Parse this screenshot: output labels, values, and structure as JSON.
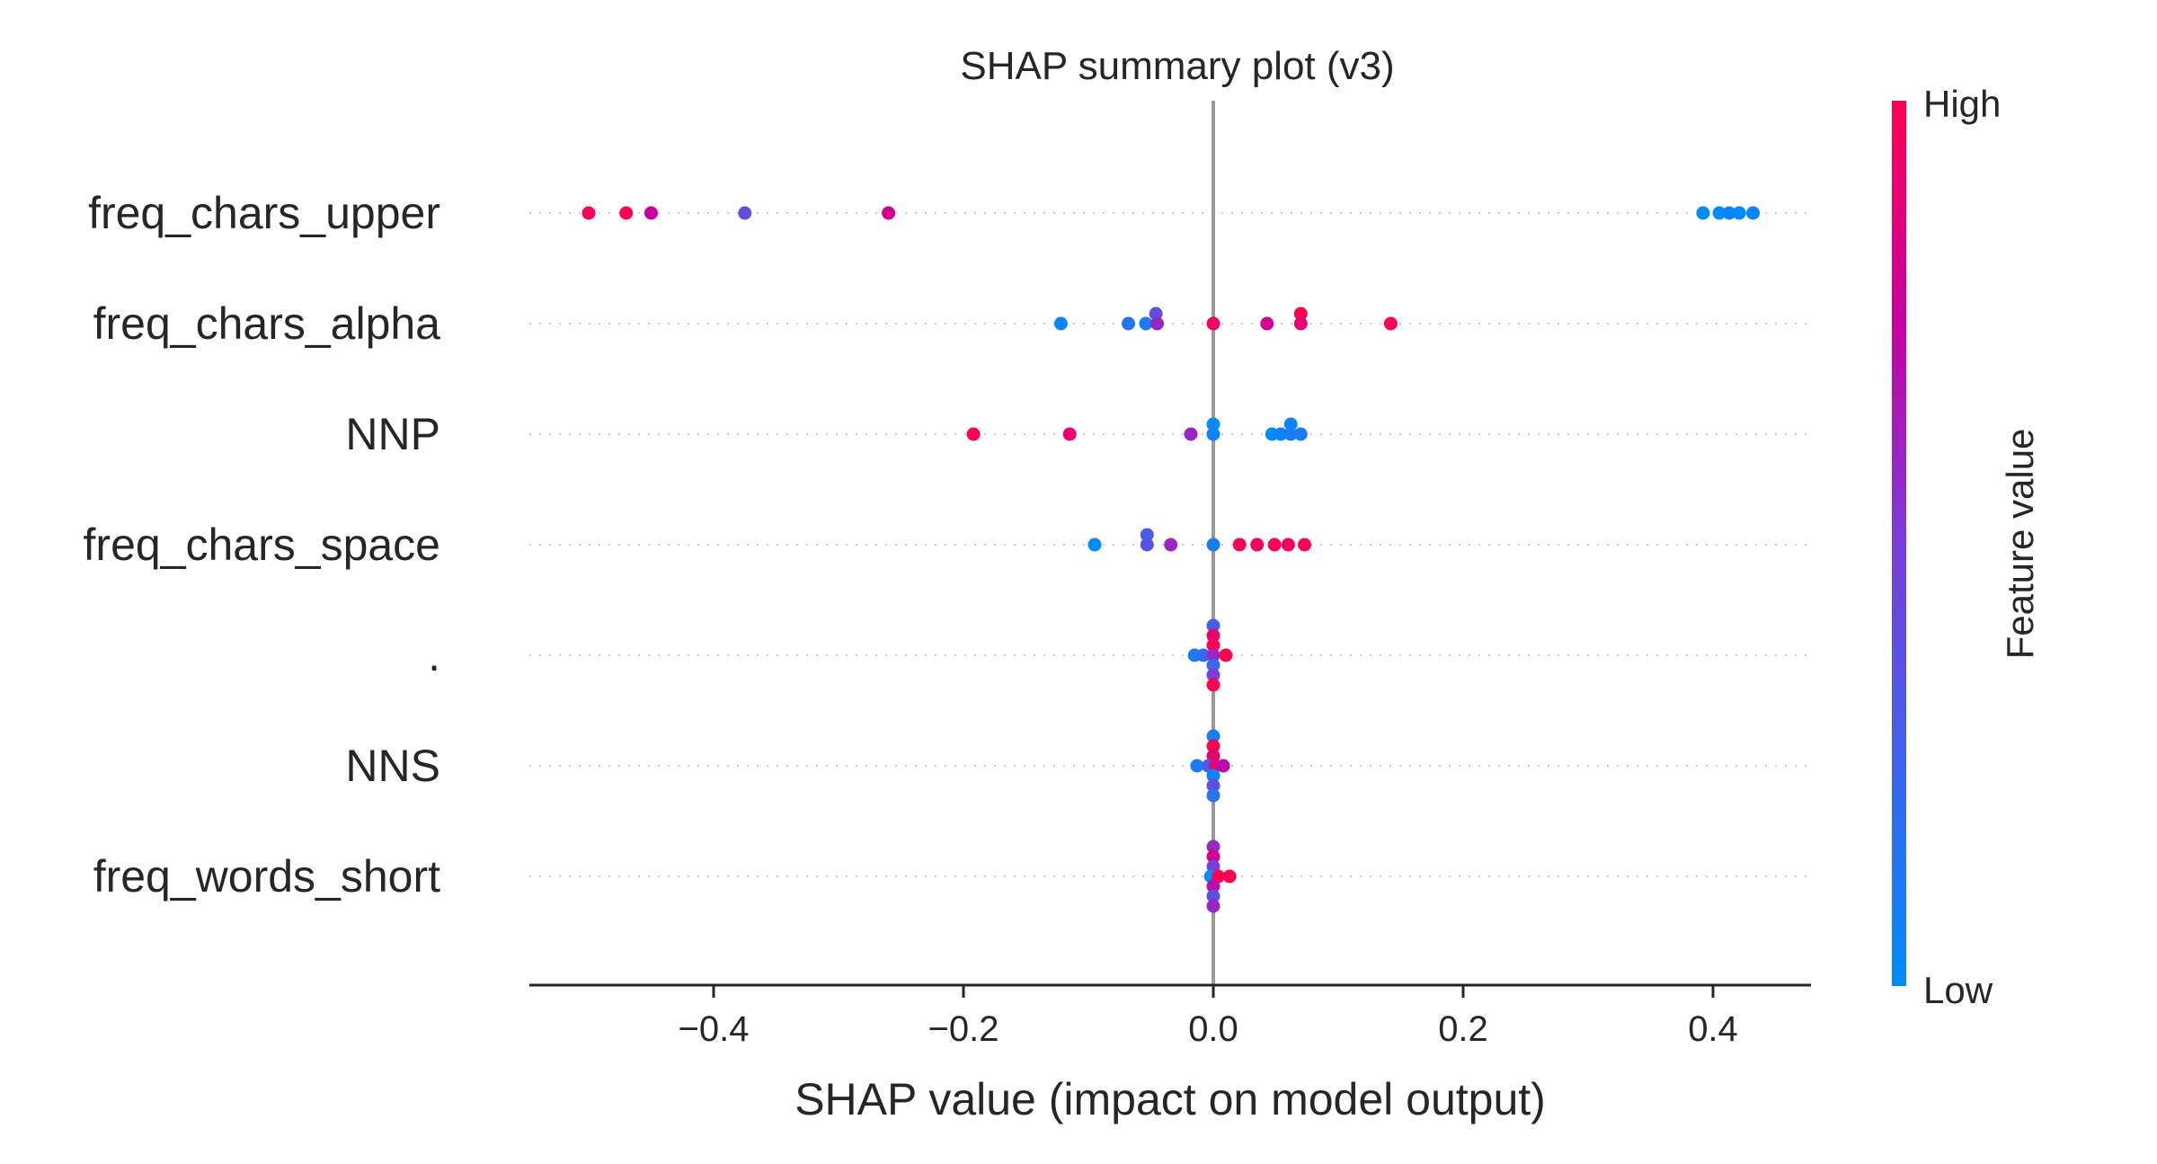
{
  "chart_data": {
    "type": "scatter",
    "title": "SHAP summary plot (v3)",
    "xlabel": "SHAP value (impact on model output)",
    "xlim": [
      -0.55,
      0.48
    ],
    "xticks": [
      -0.4,
      -0.2,
      0.0,
      0.2,
      0.4
    ],
    "xtick_labels": [
      "−0.4",
      "−0.2",
      "0.0",
      "0.2",
      "0.4"
    ],
    "colorbar": {
      "title": "Feature value",
      "high_label": "High",
      "low_label": "Low",
      "low_color": "#008bfb",
      "high_color": "#ff0052"
    },
    "features": [
      {
        "name": "freq_chars_upper",
        "points": [
          {
            "x": -0.5,
            "v": 1.0,
            "j": 0
          },
          {
            "x": -0.47,
            "v": 1.0,
            "j": 0
          },
          {
            "x": -0.45,
            "v": 0.75,
            "j": 0
          },
          {
            "x": -0.375,
            "v": 0.4,
            "j": 0
          },
          {
            "x": -0.26,
            "v": 0.8,
            "j": 0
          },
          {
            "x": 0.392,
            "v": 0.0,
            "j": 0
          },
          {
            "x": 0.405,
            "v": 0.0,
            "j": 0
          },
          {
            "x": 0.413,
            "v": 0.05,
            "j": 0
          },
          {
            "x": 0.421,
            "v": 0.0,
            "j": 0
          },
          {
            "x": 0.432,
            "v": 0.05,
            "j": 0
          }
        ]
      },
      {
        "name": "freq_chars_alpha",
        "points": [
          {
            "x": -0.122,
            "v": 0.05,
            "j": 0
          },
          {
            "x": -0.068,
            "v": 0.15,
            "j": 0
          },
          {
            "x": -0.054,
            "v": 0.1,
            "j": 0
          },
          {
            "x": -0.046,
            "v": 0.4,
            "j": -1
          },
          {
            "x": -0.045,
            "v": 0.6,
            "j": 0
          },
          {
            "x": 0.0,
            "v": 0.95,
            "j": 0
          },
          {
            "x": 0.043,
            "v": 0.8,
            "j": 0
          },
          {
            "x": 0.07,
            "v": 1.0,
            "j": -1
          },
          {
            "x": 0.07,
            "v": 0.9,
            "j": 0
          },
          {
            "x": 0.142,
            "v": 1.0,
            "j": 0
          }
        ]
      },
      {
        "name": "NNP",
        "points": [
          {
            "x": -0.192,
            "v": 1.0,
            "j": 0
          },
          {
            "x": -0.115,
            "v": 0.9,
            "j": 0
          },
          {
            "x": -0.018,
            "v": 0.6,
            "j": 0
          },
          {
            "x": 0.0,
            "v": 0.0,
            "j": -1
          },
          {
            "x": 0.0,
            "v": 0.05,
            "j": 0
          },
          {
            "x": 0.047,
            "v": 0.0,
            "j": 0
          },
          {
            "x": 0.054,
            "v": 0.05,
            "j": 0
          },
          {
            "x": 0.062,
            "v": 0.1,
            "j": 0
          },
          {
            "x": 0.062,
            "v": 0.05,
            "j": -1
          },
          {
            "x": 0.07,
            "v": 0.1,
            "j": 0
          }
        ]
      },
      {
        "name": "freq_chars_space",
        "points": [
          {
            "x": -0.095,
            "v": 0.0,
            "j": 0
          },
          {
            "x": -0.053,
            "v": 0.3,
            "j": -1
          },
          {
            "x": -0.053,
            "v": 0.35,
            "j": 0
          },
          {
            "x": -0.034,
            "v": 0.6,
            "j": 0
          },
          {
            "x": 0.0,
            "v": 0.1,
            "j": 0
          },
          {
            "x": 0.021,
            "v": 1.0,
            "j": 0
          },
          {
            "x": 0.035,
            "v": 0.95,
            "j": 0
          },
          {
            "x": 0.049,
            "v": 1.0,
            "j": 0
          },
          {
            "x": 0.06,
            "v": 0.95,
            "j": 0
          },
          {
            "x": 0.073,
            "v": 1.0,
            "j": 0
          }
        ]
      },
      {
        "name": ".",
        "points": [
          {
            "x": 0.0,
            "v": 0.3,
            "j": -3
          },
          {
            "x": 0.0,
            "v": 0.9,
            "j": -2
          },
          {
            "x": 0.0,
            "v": 1.0,
            "j": -1
          },
          {
            "x": -0.015,
            "v": 0.1,
            "j": 0
          },
          {
            "x": -0.008,
            "v": 0.2,
            "j": 0
          },
          {
            "x": 0.0,
            "v": 0.6,
            "j": 0
          },
          {
            "x": 0.01,
            "v": 1.0,
            "j": 0
          },
          {
            "x": 0.0,
            "v": 0.25,
            "j": 1
          },
          {
            "x": 0.0,
            "v": 0.5,
            "j": 2
          },
          {
            "x": 0.0,
            "v": 1.0,
            "j": 3
          }
        ]
      },
      {
        "name": "NNS",
        "points": [
          {
            "x": 0.0,
            "v": 0.1,
            "j": -3
          },
          {
            "x": 0.0,
            "v": 1.0,
            "j": -2
          },
          {
            "x": 0.0,
            "v": 0.9,
            "j": -1
          },
          {
            "x": -0.013,
            "v": 0.1,
            "j": 0
          },
          {
            "x": -0.004,
            "v": 0.3,
            "j": 0
          },
          {
            "x": 0.002,
            "v": 0.9,
            "j": 0
          },
          {
            "x": 0.008,
            "v": 0.7,
            "j": 0
          },
          {
            "x": 0.0,
            "v": 0.05,
            "j": 1
          },
          {
            "x": 0.0,
            "v": 0.4,
            "j": 2
          },
          {
            "x": 0.0,
            "v": 0.15,
            "j": 3
          }
        ]
      },
      {
        "name": "freq_words_short",
        "points": [
          {
            "x": 0.0,
            "v": 0.6,
            "j": -3
          },
          {
            "x": 0.0,
            "v": 0.8,
            "j": -2
          },
          {
            "x": 0.0,
            "v": 0.5,
            "j": -1
          },
          {
            "x": -0.002,
            "v": 0.0,
            "j": 0
          },
          {
            "x": 0.004,
            "v": 1.0,
            "j": 0
          },
          {
            "x": 0.013,
            "v": 1.0,
            "j": 0
          },
          {
            "x": 0.0,
            "v": 0.7,
            "j": 1
          },
          {
            "x": 0.0,
            "v": 0.4,
            "j": 2
          },
          {
            "x": 0.0,
            "v": 0.6,
            "j": 3
          }
        ]
      }
    ]
  }
}
